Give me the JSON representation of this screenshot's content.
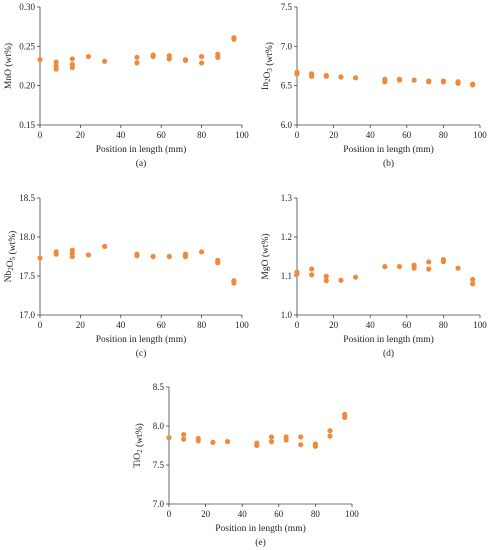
{
  "colors": {
    "marker": "#ee8a3c",
    "axis": "#444444",
    "text": "#222222"
  },
  "chart_data": [
    {
      "type": "scatter",
      "caption": "(a)",
      "xlabel": "Position in length (mm)",
      "ylabel": "MnO (wt%)",
      "ylabel_parts": {
        "base": "MnO",
        "sub": "",
        "suffix": " (wt%)"
      },
      "xlim": [
        0,
        100
      ],
      "ylim": [
        0.15,
        0.3
      ],
      "xticks": [
        "0",
        "20",
        "40",
        "60",
        "80",
        "100"
      ],
      "yticks": [
        "0.15",
        "0.20",
        "0.25",
        "0.30"
      ],
      "points": [
        [
          0,
          0.233
        ],
        [
          8,
          0.23
        ],
        [
          8,
          0.225
        ],
        [
          8,
          0.221
        ],
        [
          16,
          0.234
        ],
        [
          16,
          0.227
        ],
        [
          16,
          0.223
        ],
        [
          24,
          0.237
        ],
        [
          32,
          0.231
        ],
        [
          48,
          0.236
        ],
        [
          48,
          0.229
        ],
        [
          56,
          0.239
        ],
        [
          56,
          0.237
        ],
        [
          64,
          0.238
        ],
        [
          64,
          0.234
        ],
        [
          72,
          0.233
        ],
        [
          72,
          0.232
        ],
        [
          80,
          0.237
        ],
        [
          80,
          0.229
        ],
        [
          88,
          0.24
        ],
        [
          88,
          0.236
        ],
        [
          96,
          0.261
        ],
        [
          96,
          0.259
        ]
      ]
    },
    {
      "type": "scatter",
      "caption": "(b)",
      "xlabel": "Position in length (mm)",
      "ylabel": "In2O3 (wt%)",
      "ylabel_parts": {
        "base": "In",
        "sub": "2",
        "mid": "O",
        "sub2": "3",
        "suffix": " (wt%)"
      },
      "xlim": [
        0,
        100
      ],
      "ylim": [
        6.0,
        7.5
      ],
      "xticks": [
        "0",
        "20",
        "40",
        "60",
        "80",
        "100"
      ],
      "yticks": [
        "6.0",
        "6.5",
        "7.0",
        "7.5"
      ],
      "points": [
        [
          0,
          6.67
        ],
        [
          0,
          6.65
        ],
        [
          8,
          6.65
        ],
        [
          8,
          6.62
        ],
        [
          16,
          6.63
        ],
        [
          16,
          6.62
        ],
        [
          24,
          6.61
        ],
        [
          32,
          6.6
        ],
        [
          48,
          6.58
        ],
        [
          48,
          6.55
        ],
        [
          56,
          6.58
        ],
        [
          56,
          6.57
        ],
        [
          64,
          6.57
        ],
        [
          72,
          6.56
        ],
        [
          72,
          6.55
        ],
        [
          80,
          6.56
        ],
        [
          80,
          6.55
        ],
        [
          88,
          6.55
        ],
        [
          88,
          6.53
        ],
        [
          96,
          6.52
        ],
        [
          96,
          6.51
        ]
      ]
    },
    {
      "type": "scatter",
      "caption": "(c)",
      "xlabel": "Position in length (mm)",
      "ylabel": "Nb2O5 (wt%)",
      "ylabel_parts": {
        "base": "Nb",
        "sub": "2",
        "mid": "O",
        "sub2": "5",
        "suffix": " (wt%)"
      },
      "xlim": [
        0,
        100
      ],
      "ylim": [
        17.0,
        18.5
      ],
      "xticks": [
        "0",
        "20",
        "40",
        "60",
        "80",
        "100"
      ],
      "yticks": [
        "17.0",
        "17.5",
        "18.0",
        "18.5"
      ],
      "points": [
        [
          0,
          17.73
        ],
        [
          8,
          17.81
        ],
        [
          8,
          17.78
        ],
        [
          16,
          17.83
        ],
        [
          16,
          17.79
        ],
        [
          16,
          17.75
        ],
        [
          24,
          17.77
        ],
        [
          32,
          17.88
        ],
        [
          48,
          17.78
        ],
        [
          48,
          17.76
        ],
        [
          56,
          17.75
        ],
        [
          64,
          17.75
        ],
        [
          72,
          17.78
        ],
        [
          72,
          17.75
        ],
        [
          80,
          17.81
        ],
        [
          88,
          17.7
        ],
        [
          88,
          17.67
        ],
        [
          96,
          17.44
        ],
        [
          96,
          17.41
        ]
      ]
    },
    {
      "type": "scatter",
      "caption": "(d)",
      "xlabel": "Position in length (mm)",
      "ylabel": "MgO (wt%)",
      "ylabel_parts": {
        "base": "MgO",
        "sub": "",
        "suffix": " (wt%)"
      },
      "xlim": [
        0,
        100
      ],
      "ylim": [
        1.0,
        1.3
      ],
      "xticks": [
        "0",
        "20",
        "40",
        "60",
        "80",
        "100"
      ],
      "yticks": [
        "1.0",
        "1.1",
        "1.2",
        "1.3"
      ],
      "points": [
        [
          0,
          1.11
        ],
        [
          0,
          1.105
        ],
        [
          8,
          1.118
        ],
        [
          8,
          1.103
        ],
        [
          16,
          1.099
        ],
        [
          16,
          1.088
        ],
        [
          24,
          1.089
        ],
        [
          32,
          1.097
        ],
        [
          48,
          1.124
        ],
        [
          56,
          1.124
        ],
        [
          64,
          1.128
        ],
        [
          64,
          1.12
        ],
        [
          72,
          1.136
        ],
        [
          72,
          1.118
        ],
        [
          80,
          1.142
        ],
        [
          80,
          1.137
        ],
        [
          88,
          1.12
        ],
        [
          96,
          1.091
        ],
        [
          96,
          1.08
        ]
      ]
    },
    {
      "type": "scatter",
      "caption": "(e)",
      "xlabel": "Position in length (mm)",
      "ylabel": "TiO2 (wt%)",
      "ylabel_parts": {
        "base": "TiO",
        "sub": "2",
        "suffix": " (wt%)"
      },
      "xlim": [
        0,
        100
      ],
      "ylim": [
        7.0,
        8.5
      ],
      "xticks": [
        "0",
        "20",
        "40",
        "60",
        "80",
        "100"
      ],
      "yticks": [
        "7.0",
        "7.5",
        "8.0",
        "8.5"
      ],
      "points": [
        [
          0,
          7.85
        ],
        [
          8,
          7.89
        ],
        [
          8,
          7.83
        ],
        [
          16,
          7.84
        ],
        [
          16,
          7.81
        ],
        [
          24,
          7.79
        ],
        [
          32,
          7.8
        ],
        [
          48,
          7.78
        ],
        [
          48,
          7.75
        ],
        [
          56,
          7.86
        ],
        [
          56,
          7.8
        ],
        [
          64,
          7.86
        ],
        [
          64,
          7.82
        ],
        [
          72,
          7.86
        ],
        [
          72,
          7.76
        ],
        [
          80,
          7.77
        ],
        [
          80,
          7.74
        ],
        [
          88,
          7.94
        ],
        [
          88,
          7.87
        ],
        [
          96,
          8.15
        ],
        [
          96,
          8.11
        ]
      ]
    }
  ]
}
